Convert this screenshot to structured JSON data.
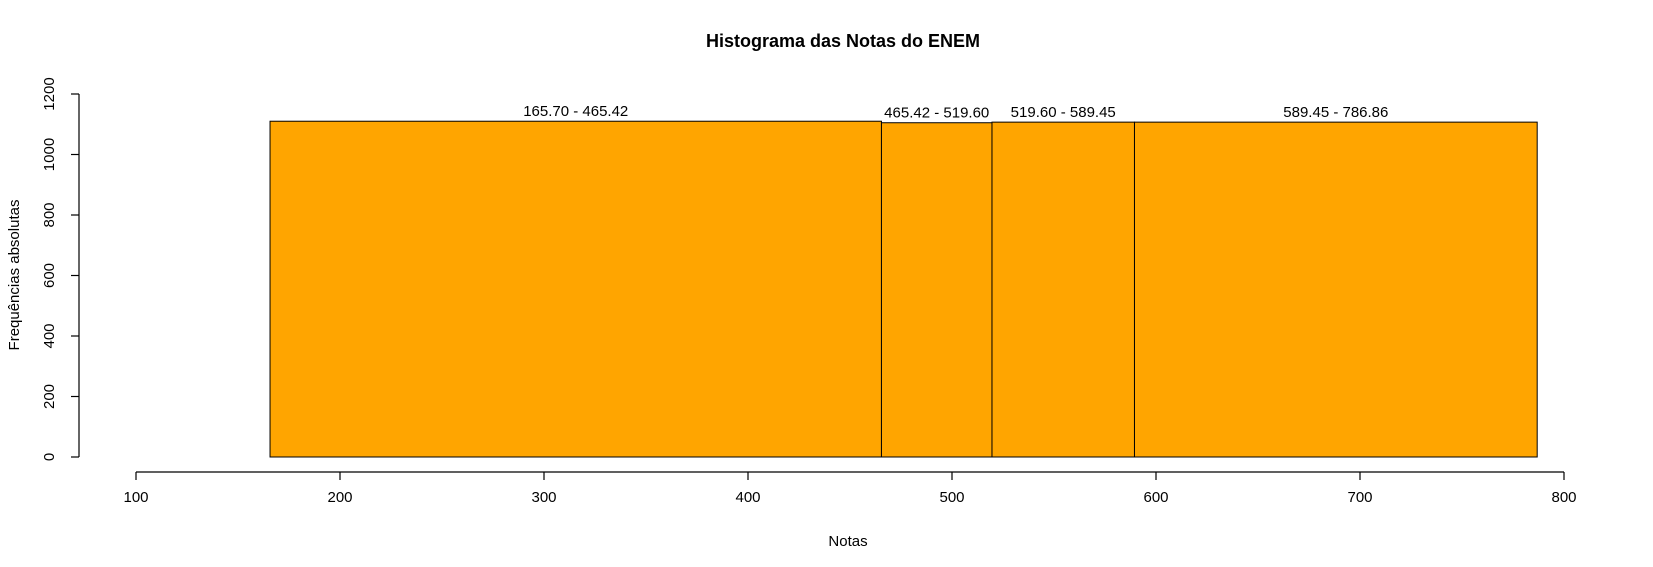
{
  "chart_data": {
    "type": "bar",
    "title": "Histograma das Notas do ENEM",
    "xlabel": "Notas",
    "ylabel": "Frequências absolutas",
    "xlim": [
      100,
      800
    ],
    "ylim": [
      0,
      1200
    ],
    "x_ticks": [
      "100",
      "200",
      "300",
      "400",
      "500",
      "600",
      "700",
      "800"
    ],
    "y_ticks": [
      "0",
      "200",
      "400",
      "600",
      "800",
      "1000",
      "1200"
    ],
    "bar_color": "#FFA500",
    "grid": false,
    "bins": [
      {
        "label": "165.70 - 465.42",
        "start": 165.7,
        "end": 465.42,
        "value": 1110
      },
      {
        "label": "465.42 - 519.60",
        "start": 465.42,
        "end": 519.6,
        "value": 1105
      },
      {
        "label": "519.60 - 589.45",
        "start": 519.6,
        "end": 589.45,
        "value": 1107
      },
      {
        "label": "589.45 - 786.86",
        "start": 589.45,
        "end": 786.86,
        "value": 1107
      }
    ]
  }
}
